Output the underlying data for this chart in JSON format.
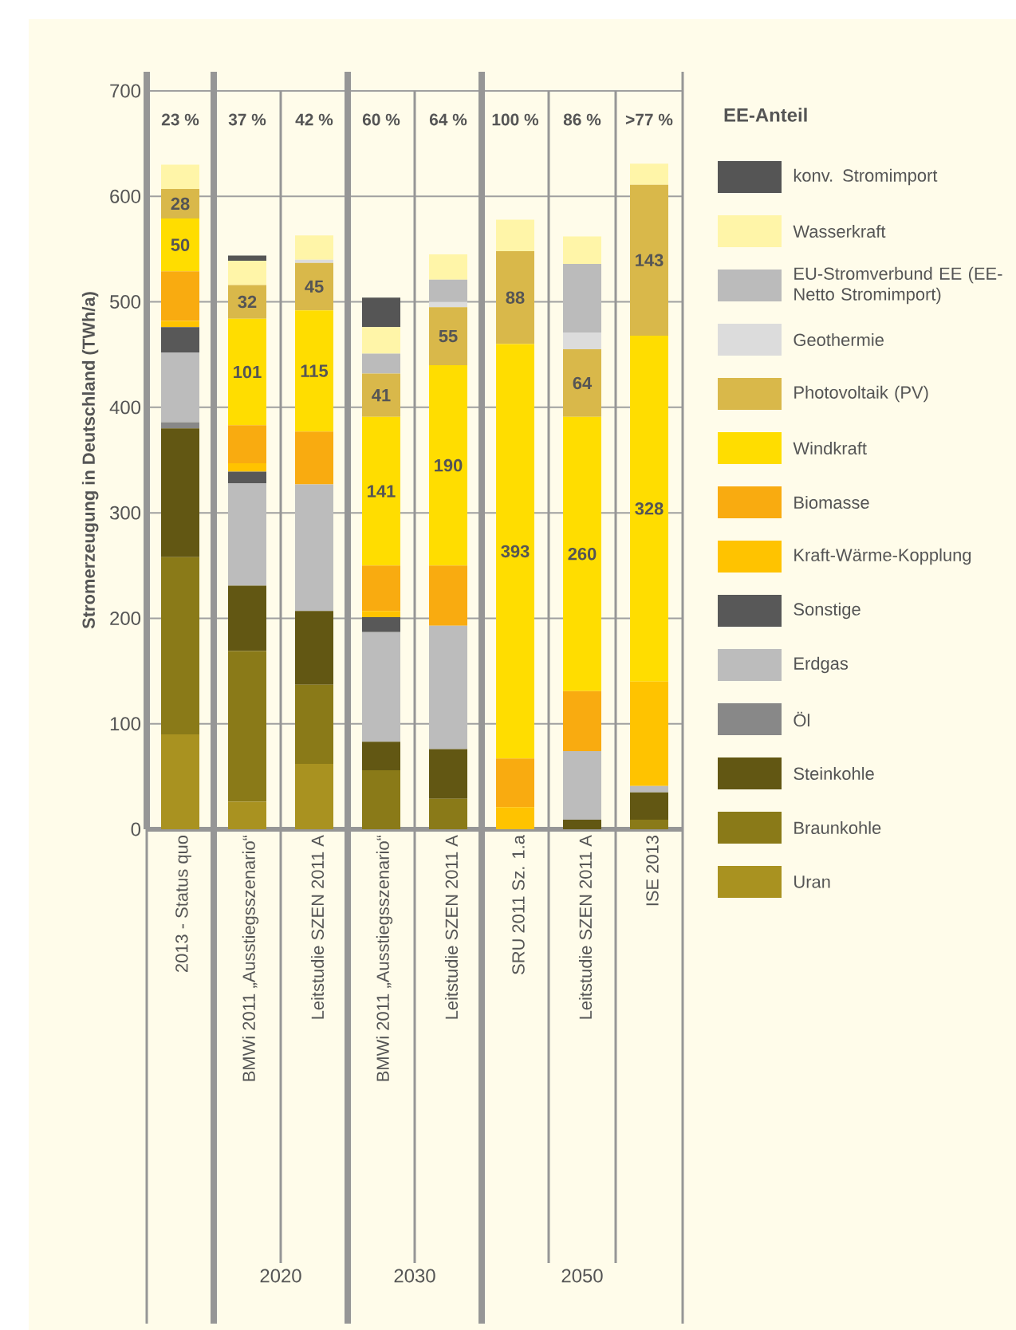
{
  "chart_data": {
    "type": "bar",
    "stacked": true,
    "ylabel": "Stromerzeugung in Deutschland (TWh/a)",
    "legend_title": "EE-Anteil",
    "categories": [
      "2013 - Status quo",
      "BMWi 2011 „Ausstiegsszenario“",
      "Leitstudie SZEN 2011 A",
      "BMWi 2011 „Ausstiegsszenario“",
      "Leitstudie SZEN 2011 A",
      "SRU 2011 Sz. 1.a",
      "Leitstudie SZEN 2011 A",
      "ISE 2013"
    ],
    "series": [
      {
        "name": "Uran",
        "color": "#a99220",
        "values": [
          90,
          26,
          62,
          0,
          0,
          0,
          0,
          0
        ]
      },
      {
        "name": "Braunkohle",
        "color": "#8a7a18",
        "values": [
          168,
          143,
          75,
          56,
          29,
          0,
          0,
          9
        ]
      },
      {
        "name": "Steinkohle",
        "color": "#625713",
        "values": [
          122,
          62,
          70,
          27,
          47,
          0,
          9,
          26
        ]
      },
      {
        "name": "Öl",
        "color": "#888888",
        "values": [
          6,
          0,
          0,
          0,
          0,
          0,
          0,
          0
        ]
      },
      {
        "name": "Erdgas",
        "color": "#bcbcbc",
        "values": [
          66,
          97,
          120,
          104,
          117,
          0,
          65,
          6
        ]
      },
      {
        "name": "Sonstige",
        "color": "#585858",
        "values": [
          24,
          11,
          0,
          14,
          0,
          0,
          0,
          0
        ]
      },
      {
        "name": "Kraft-Wärme-Kopplung",
        "color": "#ffc300",
        "values": [
          6,
          8,
          0,
          6,
          0,
          21,
          0,
          99
        ]
      },
      {
        "name": "Biomasse",
        "color": "#f9ab10",
        "values": [
          47,
          36,
          50,
          43,
          57,
          46,
          57,
          0
        ]
      },
      {
        "name": "Windkraft",
        "color": "#ffdd00",
        "values": [
          50,
          101,
          115,
          141,
          190,
          393,
          260,
          328
        ],
        "value_labels": [
          "50",
          "101",
          "115",
          "141",
          "190",
          "393",
          "260",
          "328"
        ]
      },
      {
        "name": "Photovoltaik (PV)",
        "color": "#d9b84a",
        "values": [
          28,
          32,
          45,
          41,
          55,
          88,
          64,
          143
        ],
        "value_labels": [
          "28",
          "32",
          "45",
          "41",
          "55",
          "88",
          "64",
          "143"
        ]
      },
      {
        "name": "Geothermie",
        "color": "#dcdcdc",
        "values": [
          0,
          0,
          3,
          0,
          5,
          0,
          16,
          0
        ]
      },
      {
        "name": "EU-Stromverbund EE (EE-Netto Stromimport)",
        "color": "#bbbbbb",
        "values": [
          0,
          0,
          0,
          19,
          21,
          0,
          65,
          0
        ]
      },
      {
        "name": "Wasserkraft",
        "color": "#fff5a8",
        "values": [
          23,
          23,
          23,
          25,
          24,
          30,
          26,
          20
        ]
      },
      {
        "name": "konv. Stromimport",
        "color": "#555555",
        "values": [
          0,
          5,
          0,
          28,
          0,
          0,
          0,
          0
        ]
      }
    ],
    "ylim": [
      0,
      700
    ],
    "yticks": [
      0,
      100,
      200,
      300,
      400,
      500,
      600,
      700
    ],
    "grid": "y",
    "legend": "right",
    "annotations": [
      "23 %",
      "37 %",
      "42 %",
      "60 %",
      "64 %",
      "100 %",
      "86 %",
      ">77 %",
      "2020",
      "2030",
      "2050"
    ]
  }
}
